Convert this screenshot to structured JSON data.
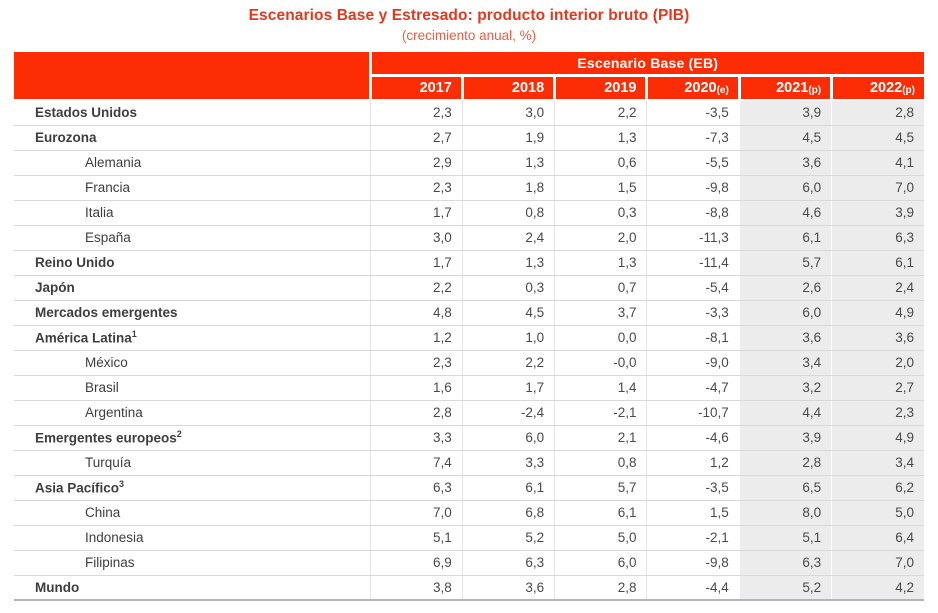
{
  "title": "Escenarios Base y Estresado: producto interior bruto (PIB)",
  "subtitle": "(crecimiento anual, %)",
  "colors": {
    "header_bg": "#FC2D04",
    "title_text": "#E0391F",
    "subtitle_text": "#EE5C40",
    "shaded_column_bg": "#ECECEC",
    "row_divider": "#D8D8D8",
    "bottom_border": "#B2B6B8"
  },
  "chart_data": {
    "type": "table",
    "group_header": "Escenario Base (EB)",
    "columns": [
      {
        "year": "2017",
        "suffix": ""
      },
      {
        "year": "2018",
        "suffix": ""
      },
      {
        "year": "2019",
        "suffix": ""
      },
      {
        "year": "2020",
        "suffix": "(e)"
      },
      {
        "year": "2021",
        "suffix": "(p)"
      },
      {
        "year": "2022",
        "suffix": "(p)"
      }
    ],
    "shaded_columns": [
      "2021",
      "2022"
    ],
    "rows": [
      {
        "label": "Estados Unidos",
        "sup": "",
        "bold": true,
        "indent": false,
        "values": [
          "2,3",
          "3,0",
          "2,2",
          "-3,5",
          "3,9",
          "2,8"
        ]
      },
      {
        "label": "Eurozona",
        "sup": "",
        "bold": true,
        "indent": false,
        "values": [
          "2,7",
          "1,9",
          "1,3",
          "-7,3",
          "4,5",
          "4,5"
        ]
      },
      {
        "label": "Alemania",
        "sup": "",
        "bold": false,
        "indent": true,
        "values": [
          "2,9",
          "1,3",
          "0,6",
          "-5,5",
          "3,6",
          "4,1"
        ]
      },
      {
        "label": "Francia",
        "sup": "",
        "bold": false,
        "indent": true,
        "values": [
          "2,3",
          "1,8",
          "1,5",
          "-9,8",
          "6,0",
          "7,0"
        ]
      },
      {
        "label": "Italia",
        "sup": "",
        "bold": false,
        "indent": true,
        "values": [
          "1,7",
          "0,8",
          "0,3",
          "-8,8",
          "4,6",
          "3,9"
        ]
      },
      {
        "label": "España",
        "sup": "",
        "bold": false,
        "indent": true,
        "values": [
          "3,0",
          "2,4",
          "2,0",
          "-11,3",
          "6,1",
          "6,3"
        ]
      },
      {
        "label": "Reino Unido",
        "sup": "",
        "bold": true,
        "indent": false,
        "values": [
          "1,7",
          "1,3",
          "1,3",
          "-11,4",
          "5,7",
          "6,1"
        ]
      },
      {
        "label": "Japón",
        "sup": "",
        "bold": true,
        "indent": false,
        "values": [
          "2,2",
          "0,3",
          "0,7",
          "-5,4",
          "2,6",
          "2,4"
        ]
      },
      {
        "label": "Mercados emergentes",
        "sup": "",
        "bold": true,
        "indent": false,
        "values": [
          "4,8",
          "4,5",
          "3,7",
          "-3,3",
          "6,0",
          "4,9"
        ]
      },
      {
        "label": "América Latina",
        "sup": "1",
        "bold": true,
        "indent": false,
        "values": [
          "1,2",
          "1,0",
          "0,0",
          "-8,1",
          "3,6",
          "3,6"
        ]
      },
      {
        "label": "México",
        "sup": "",
        "bold": false,
        "indent": true,
        "values": [
          "2,3",
          "2,2",
          "-0,0",
          "-9,0",
          "3,4",
          "2,0"
        ]
      },
      {
        "label": "Brasil",
        "sup": "",
        "bold": false,
        "indent": true,
        "values": [
          "1,6",
          "1,7",
          "1,4",
          "-4,7",
          "3,2",
          "2,7"
        ]
      },
      {
        "label": "Argentina",
        "sup": "",
        "bold": false,
        "indent": true,
        "values": [
          "2,8",
          "-2,4",
          "-2,1",
          "-10,7",
          "4,4",
          "2,3"
        ]
      },
      {
        "label": "Emergentes europeos",
        "sup": "2",
        "bold": true,
        "indent": false,
        "values": [
          "3,3",
          "6,0",
          "2,1",
          "-4,6",
          "3,9",
          "4,9"
        ]
      },
      {
        "label": "Turquía",
        "sup": "",
        "bold": false,
        "indent": true,
        "values": [
          "7,4",
          "3,3",
          "0,8",
          "1,2",
          "2,8",
          "3,4"
        ]
      },
      {
        "label": "Asia Pacífico",
        "sup": "3",
        "bold": true,
        "indent": false,
        "values": [
          "6,3",
          "6,1",
          "5,7",
          "-3,5",
          "6,5",
          "6,2"
        ]
      },
      {
        "label": "China",
        "sup": "",
        "bold": false,
        "indent": true,
        "values": [
          "7,0",
          "6,8",
          "6,1",
          "1,5",
          "8,0",
          "5,0"
        ]
      },
      {
        "label": "Indonesia",
        "sup": "",
        "bold": false,
        "indent": true,
        "values": [
          "5,1",
          "5,2",
          "5,0",
          "-2,1",
          "5,1",
          "6,4"
        ]
      },
      {
        "label": "Filipinas",
        "sup": "",
        "bold": false,
        "indent": true,
        "values": [
          "6,9",
          "6,3",
          "6,0",
          "-9,8",
          "6,3",
          "7,0"
        ]
      },
      {
        "label": "Mundo",
        "sup": "",
        "bold": true,
        "indent": false,
        "values": [
          "3,8",
          "3,6",
          "2,8",
          "-4,4",
          "5,2",
          "4,2"
        ]
      }
    ]
  }
}
